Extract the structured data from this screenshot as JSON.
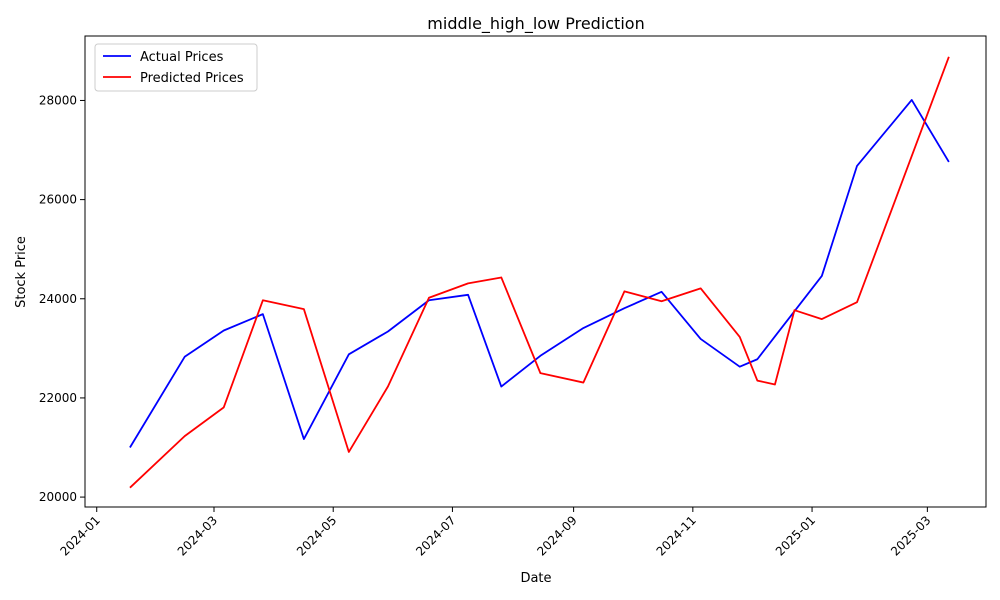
{
  "chart_data": {
    "type": "line",
    "title": "middle_high_low Prediction",
    "xlabel": "Date",
    "ylabel": "Stock Price",
    "x_axis_type": "date",
    "xlim": [
      "2023-12-26",
      "2025-03-31"
    ],
    "ylim": [
      19800,
      29300
    ],
    "x_ticks": [
      {
        "value": "2024-01-01",
        "label": "2024-01"
      },
      {
        "value": "2024-03-01",
        "label": "2024-03"
      },
      {
        "value": "2024-05-01",
        "label": "2024-05"
      },
      {
        "value": "2024-07-01",
        "label": "2024-07"
      },
      {
        "value": "2024-09-01",
        "label": "2024-09"
      },
      {
        "value": "2024-11-01",
        "label": "2024-11"
      },
      {
        "value": "2025-01-01",
        "label": "2025-01"
      },
      {
        "value": "2025-03-01",
        "label": "2025-03"
      }
    ],
    "y_ticks": [
      {
        "value": 20000,
        "label": "20000"
      },
      {
        "value": 22000,
        "label": "22000"
      },
      {
        "value": 24000,
        "label": "24000"
      },
      {
        "value": 26000,
        "label": "26000"
      },
      {
        "value": 28000,
        "label": "28000"
      }
    ],
    "x_tick_rotation": 45,
    "grid": false,
    "legend": {
      "position": "top-left"
    },
    "series": [
      {
        "name": "Actual Prices",
        "color": "#0000ff",
        "points": [
          {
            "x": "2024-01-18",
            "y": 21000
          },
          {
            "x": "2024-02-15",
            "y": 22830
          },
          {
            "x": "2024-03-06",
            "y": 23360
          },
          {
            "x": "2024-03-26",
            "y": 23690
          },
          {
            "x": "2024-04-16",
            "y": 21170
          },
          {
            "x": "2024-05-09",
            "y": 22880
          },
          {
            "x": "2024-05-29",
            "y": 23340
          },
          {
            "x": "2024-06-19",
            "y": 23970
          },
          {
            "x": "2024-07-09",
            "y": 24080
          },
          {
            "x": "2024-07-26",
            "y": 22230
          },
          {
            "x": "2024-08-15",
            "y": 22850
          },
          {
            "x": "2024-09-06",
            "y": 23410
          },
          {
            "x": "2024-09-27",
            "y": 23810
          },
          {
            "x": "2024-10-16",
            "y": 24140
          },
          {
            "x": "2024-11-05",
            "y": 23190
          },
          {
            "x": "2024-11-25",
            "y": 22630
          },
          {
            "x": "2024-12-04",
            "y": 22780
          },
          {
            "x": "2024-12-13",
            "y": 23240
          },
          {
            "x": "2025-01-06",
            "y": 24460
          },
          {
            "x": "2025-01-24",
            "y": 26680
          },
          {
            "x": "2025-02-21",
            "y": 28010
          },
          {
            "x": "2025-03-12",
            "y": 26760
          }
        ]
      },
      {
        "name": "Predicted Prices",
        "color": "#ff0000",
        "points": [
          {
            "x": "2024-01-18",
            "y": 20190
          },
          {
            "x": "2024-02-15",
            "y": 21230
          },
          {
            "x": "2024-03-06",
            "y": 21810
          },
          {
            "x": "2024-03-26",
            "y": 23970
          },
          {
            "x": "2024-04-16",
            "y": 23790
          },
          {
            "x": "2024-05-09",
            "y": 20910
          },
          {
            "x": "2024-05-29",
            "y": 22230
          },
          {
            "x": "2024-06-19",
            "y": 24020
          },
          {
            "x": "2024-07-09",
            "y": 24310
          },
          {
            "x": "2024-07-26",
            "y": 24430
          },
          {
            "x": "2024-08-15",
            "y": 22500
          },
          {
            "x": "2024-09-06",
            "y": 22310
          },
          {
            "x": "2024-09-27",
            "y": 24150
          },
          {
            "x": "2024-10-16",
            "y": 23950
          },
          {
            "x": "2024-11-05",
            "y": 24210
          },
          {
            "x": "2024-11-25",
            "y": 23230
          },
          {
            "x": "2024-12-04",
            "y": 22350
          },
          {
            "x": "2024-12-13",
            "y": 22270
          },
          {
            "x": "2024-12-23",
            "y": 23770
          },
          {
            "x": "2025-01-06",
            "y": 23590
          },
          {
            "x": "2025-01-24",
            "y": 23930
          },
          {
            "x": "2025-03-12",
            "y": 28880
          }
        ]
      }
    ]
  }
}
